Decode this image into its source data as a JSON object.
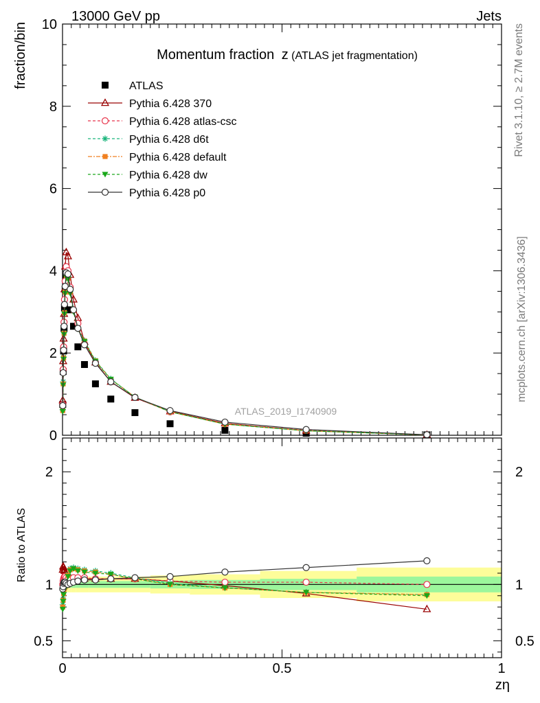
{
  "header": {
    "left": "13000 GeV pp",
    "right": "Jets"
  },
  "side_labels": {
    "rivet": "Rivet 3.1.10, ≥ 2.7M events",
    "mcplots": "mcplots.cern.ch [arXiv:1306.3436]"
  },
  "watermark": "ATLAS_2019_I1740909",
  "chart_data": [
    {
      "type": "line",
      "panel": "main",
      "title_main": "Momentum fraction",
      "title_var": "z",
      "title_sub": "(ATLAS jet fragmentation)",
      "ylabel": "fraction/bin",
      "xlim": [
        0,
        1
      ],
      "ylim": [
        0,
        10
      ],
      "yticks": [
        0,
        2,
        4,
        6,
        8,
        10
      ],
      "legend_position": "top-left",
      "x": [
        0.0005,
        0.0015,
        0.0025,
        0.0035,
        0.0045,
        0.006,
        0.0085,
        0.0125,
        0.0175,
        0.025,
        0.035,
        0.05,
        0.075,
        0.11,
        0.165,
        0.245,
        0.37,
        0.555,
        0.83
      ],
      "series": [
        {
          "name": "ATLAS",
          "color": "#000000",
          "marker": "square",
          "dash": "none",
          "values": [
            0.75,
            1.55,
            2.05,
            2.6,
            3.1,
            3.55,
            3.9,
            3.55,
            3.05,
            2.65,
            2.15,
            1.72,
            1.25,
            0.88,
            0.55,
            0.28,
            0.12,
            0.05,
            0.01
          ]
        },
        {
          "name": "Pythia 6.428 370",
          "color": "#990000",
          "marker": "triangle-open",
          "dash": "solid",
          "values": [
            0.85,
            1.8,
            2.35,
            2.95,
            3.55,
            4.1,
            4.45,
            4.35,
            3.9,
            3.3,
            2.85,
            2.27,
            1.77,
            1.3,
            0.91,
            0.58,
            0.29,
            0.11,
            0.008
          ]
        },
        {
          "name": "Pythia 6.428 atlas-csc",
          "color": "#e8334a",
          "marker": "circle-open",
          "dash": "4,3",
          "values": [
            0.75,
            1.6,
            2.15,
            2.75,
            3.3,
            3.75,
            4.1,
            4.0,
            3.6,
            3.05,
            2.72,
            2.22,
            1.77,
            1.3,
            0.92,
            0.57,
            0.28,
            0.12,
            0.01
          ]
        },
        {
          "name": "Pythia 6.428 d6t",
          "color": "#17b47a",
          "marker": "star",
          "dash": "4,3",
          "values": [
            0.62,
            1.3,
            1.9,
            2.5,
            3.0,
            3.5,
            3.9,
            3.85,
            3.5,
            3.05,
            2.6,
            2.3,
            1.82,
            1.37,
            0.93,
            0.57,
            0.27,
            0.108,
            0.009
          ]
        },
        {
          "name": "Pythia 6.428 default",
          "color": "#f08020",
          "marker": "square-filled",
          "dash": "6,2,2,2",
          "values": [
            0.6,
            1.25,
            1.88,
            2.48,
            2.98,
            3.48,
            3.88,
            3.82,
            3.48,
            3.03,
            2.6,
            2.29,
            1.81,
            1.36,
            0.93,
            0.57,
            0.27,
            0.108,
            0.009
          ]
        },
        {
          "name": "Pythia 6.428 dw",
          "color": "#1aa81a",
          "marker": "triangle-down",
          "dash": "4,3",
          "values": [
            0.58,
            1.22,
            1.85,
            2.45,
            2.95,
            3.45,
            3.85,
            3.8,
            3.45,
            3.0,
            2.58,
            2.28,
            1.8,
            1.36,
            0.93,
            0.57,
            0.27,
            0.108,
            0.009
          ]
        },
        {
          "name": "Pythia 6.428 p0",
          "color": "#333333",
          "marker": "circle-open",
          "dash": "solid",
          "values": [
            0.72,
            1.52,
            2.07,
            2.65,
            3.18,
            3.62,
            3.95,
            3.92,
            3.55,
            3.05,
            2.6,
            2.2,
            1.75,
            1.3,
            0.92,
            0.6,
            0.32,
            0.14,
            0.012
          ]
        }
      ]
    },
    {
      "type": "line",
      "panel": "ratio",
      "ylabel": "Ratio to ATLAS",
      "xlabel": "zη",
      "xlim": [
        0,
        1
      ],
      "ylim": [
        0.35,
        2.3
      ],
      "yticks": [
        0.5,
        1,
        2
      ],
      "xticks": [
        0,
        0.5,
        1
      ],
      "band_edges": [
        0,
        0.001,
        0.002,
        0.003,
        0.004,
        0.005,
        0.007,
        0.01,
        0.015,
        0.02,
        0.03,
        0.04,
        0.06,
        0.09,
        0.13,
        0.2,
        0.29,
        0.45,
        0.67,
        1.0
      ],
      "band_inner": [
        0.05,
        0.04,
        0.035,
        0.03,
        0.03,
        0.03,
        0.03,
        0.03,
        0.03,
        0.03,
        0.03,
        0.03,
        0.03,
        0.03,
        0.03,
        0.035,
        0.04,
        0.05,
        0.07
      ],
      "band_outer": [
        0.13,
        0.1,
        0.09,
        0.08,
        0.07,
        0.07,
        0.07,
        0.07,
        0.07,
        0.07,
        0.07,
        0.07,
        0.07,
        0.07,
        0.07,
        0.08,
        0.09,
        0.12,
        0.15
      ],
      "x": [
        0.0005,
        0.0015,
        0.0025,
        0.0035,
        0.0045,
        0.006,
        0.0085,
        0.0125,
        0.0175,
        0.025,
        0.035,
        0.05,
        0.075,
        0.11,
        0.165,
        0.245,
        0.37,
        0.555,
        0.83
      ],
      "series": [
        {
          "name": "Pythia 6.428 370",
          "color": "#990000",
          "marker": "triangle-open",
          "dash": "solid",
          "values": [
            1.13,
            1.16,
            1.15,
            1.13,
            1.12,
            1.1,
            1.08,
            1.07,
            1.06,
            1.05,
            1.05,
            1.05,
            1.05,
            1.05,
            1.05,
            1.03,
            0.99,
            0.92,
            0.78
          ]
        },
        {
          "name": "Pythia 6.428 atlas-csc",
          "color": "#e8334a",
          "marker": "circle-open",
          "dash": "4,3",
          "values": [
            1.0,
            1.03,
            1.05,
            1.06,
            1.07,
            1.07,
            1.06,
            1.05,
            1.05,
            1.06,
            1.06,
            1.06,
            1.05,
            1.05,
            1.05,
            1.03,
            1.02,
            1.02,
            1.0
          ]
        },
        {
          "name": "Pythia 6.428 d6t",
          "color": "#17b47a",
          "marker": "star",
          "dash": "4,3",
          "values": [
            0.82,
            0.87,
            0.93,
            0.97,
            0.98,
            0.99,
            1.0,
            1.09,
            1.14,
            1.15,
            1.14,
            1.13,
            1.12,
            1.1,
            1.06,
            1.01,
            0.97,
            0.93,
            0.91
          ]
        },
        {
          "name": "Pythia 6.428 default",
          "color": "#f08020",
          "marker": "square-filled",
          "dash": "6,2,2,2",
          "values": [
            0.8,
            0.86,
            0.92,
            0.96,
            0.97,
            0.98,
            0.99,
            1.08,
            1.13,
            1.14,
            1.13,
            1.12,
            1.11,
            1.09,
            1.05,
            1.0,
            0.97,
            0.93,
            0.91
          ]
        },
        {
          "name": "Pythia 6.428 dw",
          "color": "#1aa81a",
          "marker": "triangle-down",
          "dash": "4,3",
          "values": [
            0.78,
            0.85,
            0.91,
            0.95,
            0.96,
            0.97,
            0.98,
            1.07,
            1.12,
            1.14,
            1.12,
            1.11,
            1.1,
            1.09,
            1.05,
            1.0,
            0.97,
            0.93,
            0.9
          ]
        },
        {
          "name": "Pythia 6.428 p0",
          "color": "#333333",
          "marker": "circle-open",
          "dash": "solid",
          "values": [
            0.96,
            0.98,
            1.01,
            1.02,
            1.02,
            1.02,
            1.01,
            1.0,
            1.01,
            1.02,
            1.03,
            1.04,
            1.04,
            1.05,
            1.06,
            1.07,
            1.11,
            1.15,
            1.21
          ]
        }
      ]
    }
  ]
}
